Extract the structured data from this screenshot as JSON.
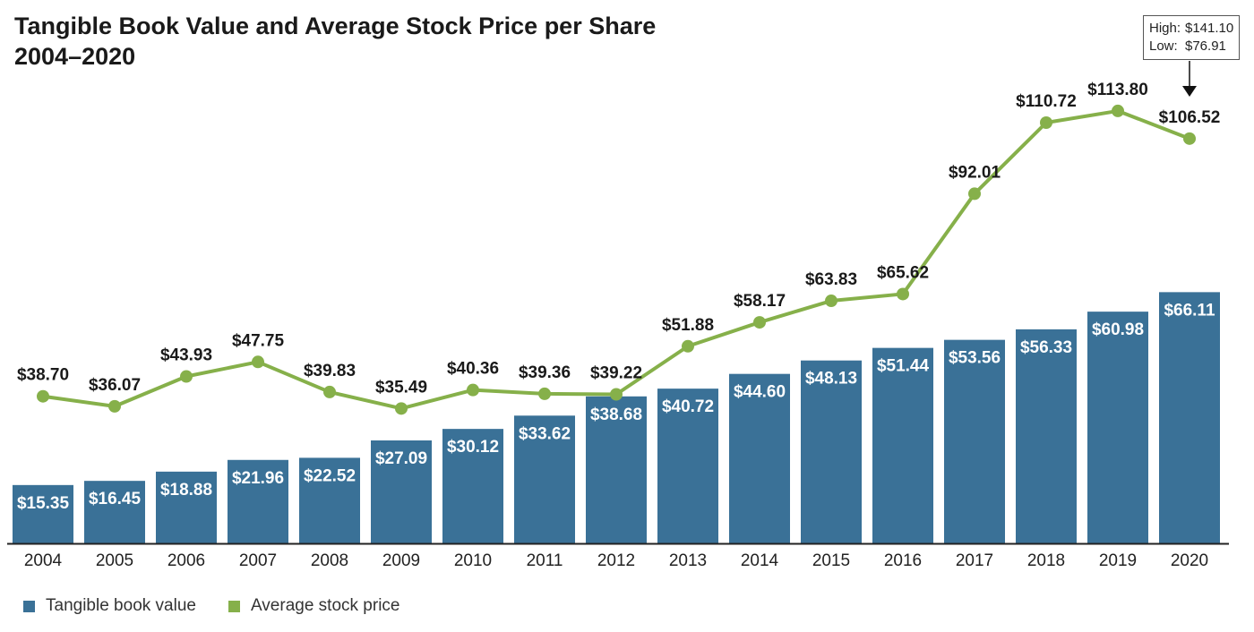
{
  "title": {
    "line1": "Tangible Book Value and Average Stock Price per Share",
    "line2": "2004–2020"
  },
  "callout": {
    "high_label": "High:",
    "high_value": "$141.10",
    "low_label": "Low:",
    "low_value": "$76.91"
  },
  "legend": {
    "bar_label": "Tangible book value",
    "line_label": "Average stock price"
  },
  "colors": {
    "bar": "#3a7197",
    "line": "#86b04a",
    "axis": "#222222",
    "label_dark": "#1a1a1a",
    "label_light": "#ffffff"
  },
  "chart_data": {
    "type": "bar",
    "categories": [
      "2004",
      "2005",
      "2006",
      "2007",
      "2008",
      "2009",
      "2010",
      "2011",
      "2012",
      "2013",
      "2014",
      "2015",
      "2016",
      "2017",
      "2018",
      "2019",
      "2020"
    ],
    "series": [
      {
        "name": "Tangible book value",
        "type": "bar",
        "values": [
          15.35,
          16.45,
          18.88,
          21.96,
          22.52,
          27.09,
          30.12,
          33.62,
          38.68,
          40.72,
          44.6,
          48.13,
          51.44,
          53.56,
          56.33,
          60.98,
          66.11
        ],
        "labels": [
          "$15.35",
          "$16.45",
          "$18.88",
          "$21.96",
          "$22.52",
          "$27.09",
          "$30.12",
          "$33.62",
          "$38.68",
          "$40.72",
          "$44.60",
          "$48.13",
          "$51.44",
          "$53.56",
          "$56.33",
          "$60.98",
          "$66.11"
        ]
      },
      {
        "name": "Average stock price",
        "type": "line",
        "values": [
          38.7,
          36.07,
          43.93,
          47.75,
          39.83,
          35.49,
          40.36,
          39.36,
          39.22,
          51.88,
          58.17,
          63.83,
          65.62,
          92.01,
          110.72,
          113.8,
          106.52
        ],
        "labels": [
          "$38.70",
          "$36.07",
          "$43.93",
          "$47.75",
          "$39.83",
          "$35.49",
          "$40.36",
          "$39.36",
          "$39.22",
          "$51.88",
          "$58.17",
          "$63.83",
          "$65.62",
          "$92.01",
          "$110.72",
          "$113.80",
          "$106.52"
        ]
      }
    ],
    "ylim": [
      0,
      130
    ],
    "grid": false,
    "legend_position": "bottom-left"
  }
}
